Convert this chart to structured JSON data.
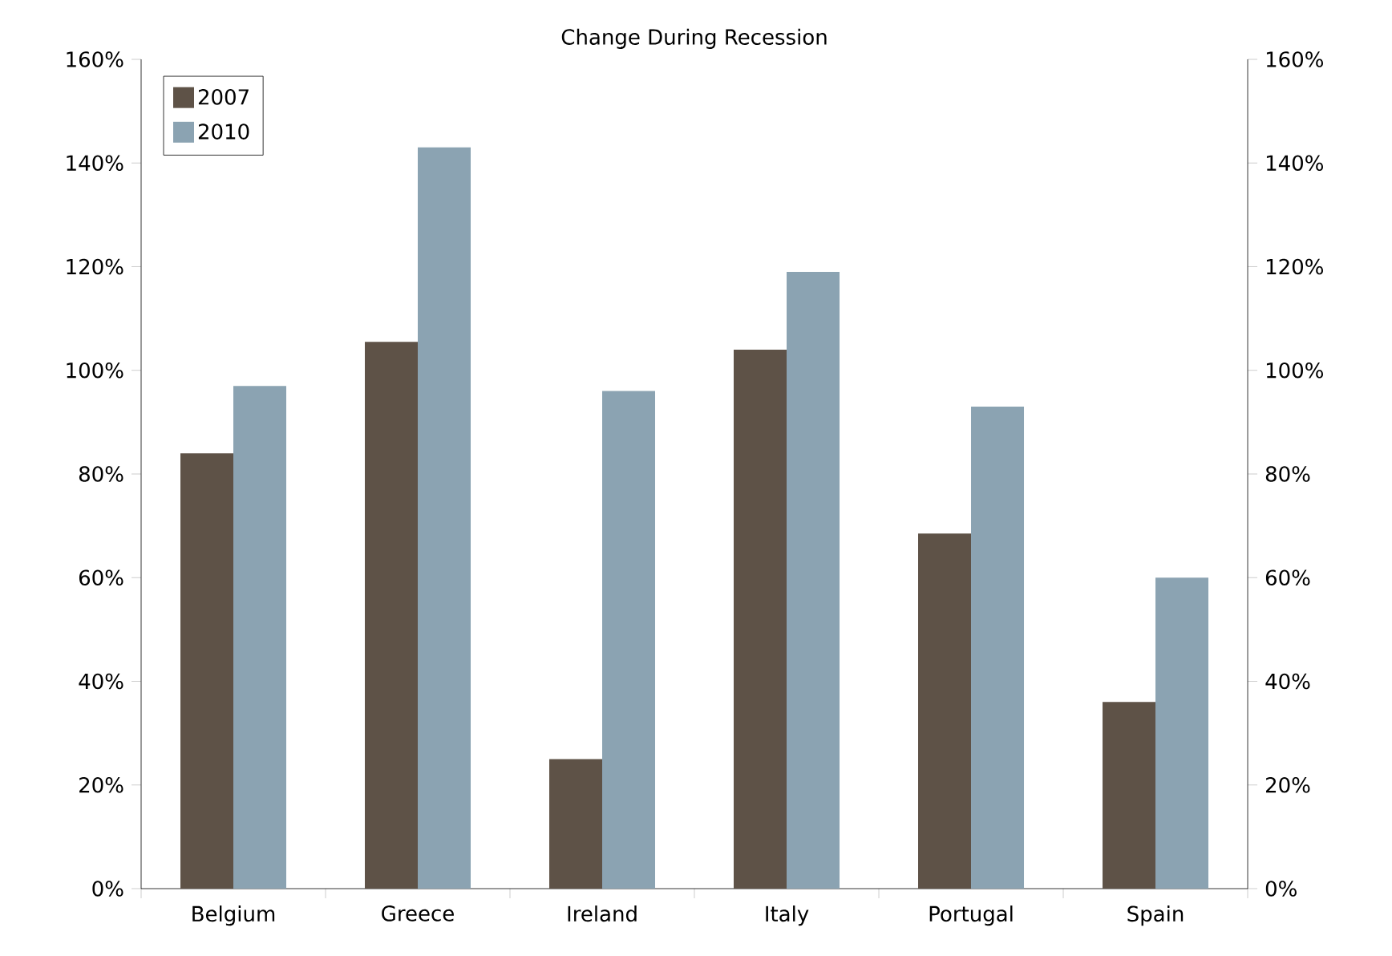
{
  "chart_data": {
    "type": "bar",
    "title": "Change During Recession",
    "categories": [
      "Belgium",
      "Greece",
      "Ireland",
      "Italy",
      "Portugal",
      "Spain"
    ],
    "series": [
      {
        "name": "2007",
        "color": "#5e5247",
        "values": [
          84,
          105.5,
          25,
          104,
          68.5,
          36
        ]
      },
      {
        "name": "2010",
        "color": "#8ba3b2",
        "values": [
          97,
          143,
          96,
          119,
          93,
          60
        ]
      }
    ],
    "ylim": [
      0,
      160
    ],
    "yticks": [
      {
        "value": 0,
        "label": "0%"
      },
      {
        "value": 20,
        "label": "20%"
      },
      {
        "value": 40,
        "label": "40%"
      },
      {
        "value": 60,
        "label": "60%"
      },
      {
        "value": 80,
        "label": "80%"
      },
      {
        "value": 100,
        "label": "100%"
      },
      {
        "value": 120,
        "label": "120%"
      },
      {
        "value": 140,
        "label": "140%"
      },
      {
        "value": 160,
        "label": "160%"
      }
    ],
    "y2lim": [
      0,
      160
    ],
    "y2ticks": [
      {
        "value": 0,
        "label": "0%"
      },
      {
        "value": 20,
        "label": "20%"
      },
      {
        "value": 40,
        "label": "40%"
      },
      {
        "value": 60,
        "label": "60%"
      },
      {
        "value": 80,
        "label": "80%"
      },
      {
        "value": 100,
        "label": "100%"
      },
      {
        "value": 120,
        "label": "120%"
      },
      {
        "value": 140,
        "label": "140%"
      },
      {
        "value": 160,
        "label": "160%"
      }
    ],
    "legend": "top left"
  }
}
